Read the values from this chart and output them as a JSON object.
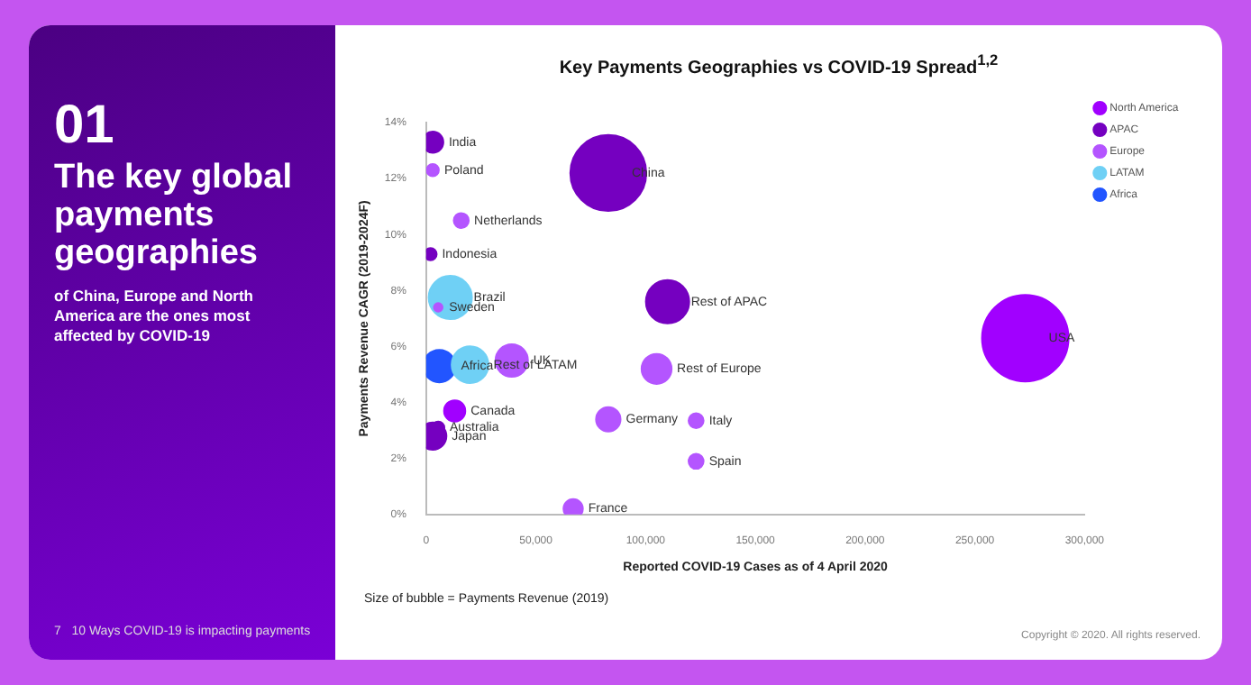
{
  "chart_data": {
    "type": "bubble",
    "title": "Key Payments Geographies vs COVID-19 Spread$^{1,2}$",
    "xlabel": "Reported COVID-19 Cases as of 4 April 2020",
    "ylabel": "Payments Revenue CAGR (2019-2024F)",
    "xlim": [
      0,
      300000
    ],
    "xticks": [
      {
        "value": 0,
        "label": "0"
      },
      {
        "value": 50000,
        "label": "50,000"
      },
      {
        "value": 100000,
        "label": "100,000"
      },
      {
        "value": 150000,
        "label": "150,000"
      },
      {
        "value": 200000,
        "label": "200,000"
      },
      {
        "value": 250000,
        "label": "250,000"
      },
      {
        "value": 300000,
        "label": "300,000"
      }
    ],
    "ylim": [
      0,
      14
    ],
    "yticks": [
      {
        "value": 0,
        "label": "0%"
      },
      {
        "value": 2,
        "label": "2%"
      },
      {
        "value": 4,
        "label": "4%"
      },
      {
        "value": 6,
        "label": "6%"
      },
      {
        "value": 8,
        "label": "8%"
      },
      {
        "value": 10,
        "label": "10%"
      },
      {
        "value": 12,
        "label": "12%"
      },
      {
        "value": 14,
        "label": "14%"
      }
    ],
    "grid": false,
    "legend": "top right",
    "series": [
      {
        "name": "North America",
        "color": "#a100ff",
        "x": [
          273000,
          13000
        ],
        "values": [
          6.3,
          3.7
        ],
        "sizes": [
          1,
          0.06
        ]
      },
      {
        "name": "APAC",
        "color": "#7500c0",
        "x": [
          3000,
          83000,
          2000,
          110000,
          5500,
          3000
        ],
        "values": [
          13.3,
          12.2,
          9.3,
          7.6,
          3.1,
          2.8
        ],
        "sizes": [
          0.06,
          0.77,
          0.02,
          0.25,
          0.02,
          0.1
        ]
      },
      {
        "name": "Europe",
        "color": "#b455ff",
        "x": [
          3000,
          16000,
          5500,
          39000,
          105000,
          83000,
          123000,
          123000,
          67000
        ],
        "values": [
          12.3,
          10.5,
          7.4,
          5.5,
          5.2,
          3.4,
          3.35,
          1.9,
          0.2
        ],
        "sizes": [
          0.02,
          0.03,
          0.01,
          0.14,
          0.12,
          0.08,
          0.03,
          0.03,
          0.05
        ]
      },
      {
        "name": "LATAM",
        "color": "#6fd0f5",
        "x": [
          11000,
          20000
        ],
        "values": [
          7.75,
          5.35
        ],
        "sizes": [
          0.25,
          0.18
        ]
      },
      {
        "name": "Africa",
        "color": "#2255ff",
        "x": [
          6000
        ],
        "values": [
          5.3
        ],
        "sizes": [
          0.14
        ]
      }
    ],
    "annotations": [
      "01",
      "The key global payments geographies",
      "of China, Europe and North America are the ones most affected by COVID-19",
      "7   10 Ways COVID-19 is impacting payments",
      "Size of bubble = Payments Revenue (2019)",
      "Copyright © 2020. All rights reserved.",
      {
        "text": "USA",
        "x": 273000,
        "y": 6.3
      },
      {
        "text": "Canada",
        "x": 13000,
        "y": 3.7
      },
      {
        "text": "India",
        "x": 3000,
        "y": 13.3
      },
      {
        "text": "China",
        "x": 83000,
        "y": 12.2
      },
      {
        "text": "Indonesia",
        "x": 2000,
        "y": 9.3
      },
      {
        "text": "Rest of APAC",
        "x": 110000,
        "y": 7.6
      },
      {
        "text": "Australia",
        "x": 5500,
        "y": 3.1
      },
      {
        "text": "Japan",
        "x": 3000,
        "y": 2.8
      },
      {
        "text": "Poland",
        "x": 3000,
        "y": 12.3
      },
      {
        "text": "Netherlands",
        "x": 16000,
        "y": 10.5
      },
      {
        "text": "Sweden",
        "x": 5500,
        "y": 7.4
      },
      {
        "text": "UK",
        "x": 39000,
        "y": 5.5
      },
      {
        "text": "Rest of Europe",
        "x": 105000,
        "y": 5.2
      },
      {
        "text": "Germany",
        "x": 83000,
        "y": 3.4
      },
      {
        "text": "Italy",
        "x": 123000,
        "y": 3.35
      },
      {
        "text": "Spain",
        "x": 123000,
        "y": 1.9
      },
      {
        "text": "France",
        "x": 67000,
        "y": 0.2
      },
      {
        "text": "Brazil",
        "x": 11000,
        "y": 7.75
      },
      {
        "text": "Rest of LATAM",
        "x": 20000,
        "y": 5.35
      },
      {
        "text": "Africa",
        "x": 6000,
        "y": 5.3
      }
    ]
  }
}
